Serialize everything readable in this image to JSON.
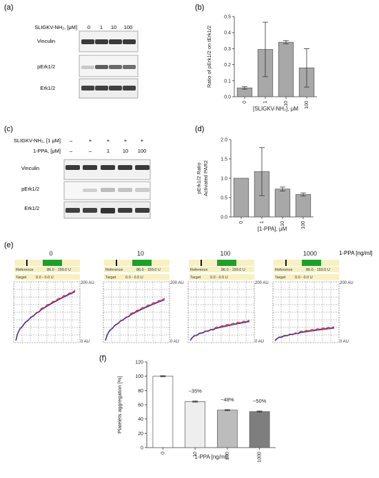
{
  "panel_letters": {
    "a": "(a)",
    "b": "(b)",
    "c": "(c)",
    "d": "(d)",
    "e": "(e)",
    "f": "(f)"
  },
  "blot_a": {
    "treatment_label": "SLIGKV-NH₂, [μM]",
    "concentrations": [
      "0",
      "1",
      "10",
      "100"
    ],
    "bands": [
      "Vinculin",
      "pErk1/2",
      "Erk1/2"
    ]
  },
  "blot_c": {
    "row1_label": "SLIGKV-NH₂, [1 μM]",
    "row1_values": [
      "–",
      "+",
      "+",
      "+",
      "+"
    ],
    "row2_label": "1-PPA, [μM]",
    "row2_values": [
      "–",
      "–",
      "1",
      "10",
      "100"
    ],
    "bands": [
      "Vinculin",
      "pErk1/2",
      "Erk1/2"
    ]
  },
  "aggregometer": {
    "unit_label": "1-PPA [ng/ml]",
    "reference_label": "Reference",
    "reference_range": "86.0 - 159.0 U",
    "target_label": "Target",
    "target_range": "0.0 - 0.0 U",
    "top_axis": "200 AU",
    "bottom_axis": "0 AU",
    "doses": [
      "0",
      "10",
      "100",
      "1000"
    ]
  },
  "chart_data": [
    {
      "panel": "b",
      "type": "bar",
      "categories": [
        "0",
        "1",
        "10",
        "100"
      ],
      "values": [
        0.055,
        0.295,
        0.34,
        0.18
      ],
      "errors": [
        0.008,
        0.17,
        0.01,
        0.12
      ],
      "ylabel": "Ratio of pErk1/2 on tErk1/2",
      "xlabel": "[SLIGKV-NH₂], μM",
      "ylim": [
        0,
        0.5
      ],
      "yticks": [
        "0.0",
        "0.1",
        "0.2",
        "0.3",
        "0.4",
        "0.5"
      ],
      "colors": {
        "bar": "#a8a8a8",
        "stroke": "#555555"
      }
    },
    {
      "panel": "d",
      "type": "bar",
      "categories": [
        "0",
        "1",
        "10",
        "100"
      ],
      "values": [
        1.0,
        1.17,
        0.72,
        0.58
      ],
      "errors": [
        0,
        0.62,
        0.05,
        0.04
      ],
      "ylabel_line1": "pErk1/2 Ratio",
      "ylabel_line2": "Activated PAR2",
      "xlabel": "[1-PPA],  μM",
      "ylim": [
        0,
        2.0
      ],
      "yticks": [
        "0.0",
        "0.5",
        "1.0",
        "1.5",
        "2.0"
      ],
      "colors": {
        "bar": "#a8a8a8",
        "stroke": "#555555"
      }
    },
    {
      "panel": "f",
      "type": "bar",
      "categories": [
        "0",
        "10",
        "100",
        "1000"
      ],
      "values": [
        100,
        64.5,
        52.5,
        50.5
      ],
      "errors": [
        0.8,
        0.8,
        0.8,
        0.8
      ],
      "annotations": [
        "",
        "−35%",
        "−48%",
        "−50%"
      ],
      "ylabel": "Platelets aggregation [%]",
      "xlabel": "1-PPA [ng/ml]",
      "ylim": [
        0,
        120
      ],
      "yticks": [
        "0",
        "20",
        "40",
        "60",
        "80",
        "100",
        "120"
      ],
      "colors": {
        "bars": [
          "#ffffff",
          "#eeeeee",
          "#bcbcbc",
          "#7e7e7e"
        ],
        "stroke": "#555555"
      }
    }
  ],
  "trace_colors": {
    "red": "#e0304a",
    "blue": "#2d3f9a",
    "header_bg": "#f7f1bf",
    "green": "#1aa224"
  }
}
